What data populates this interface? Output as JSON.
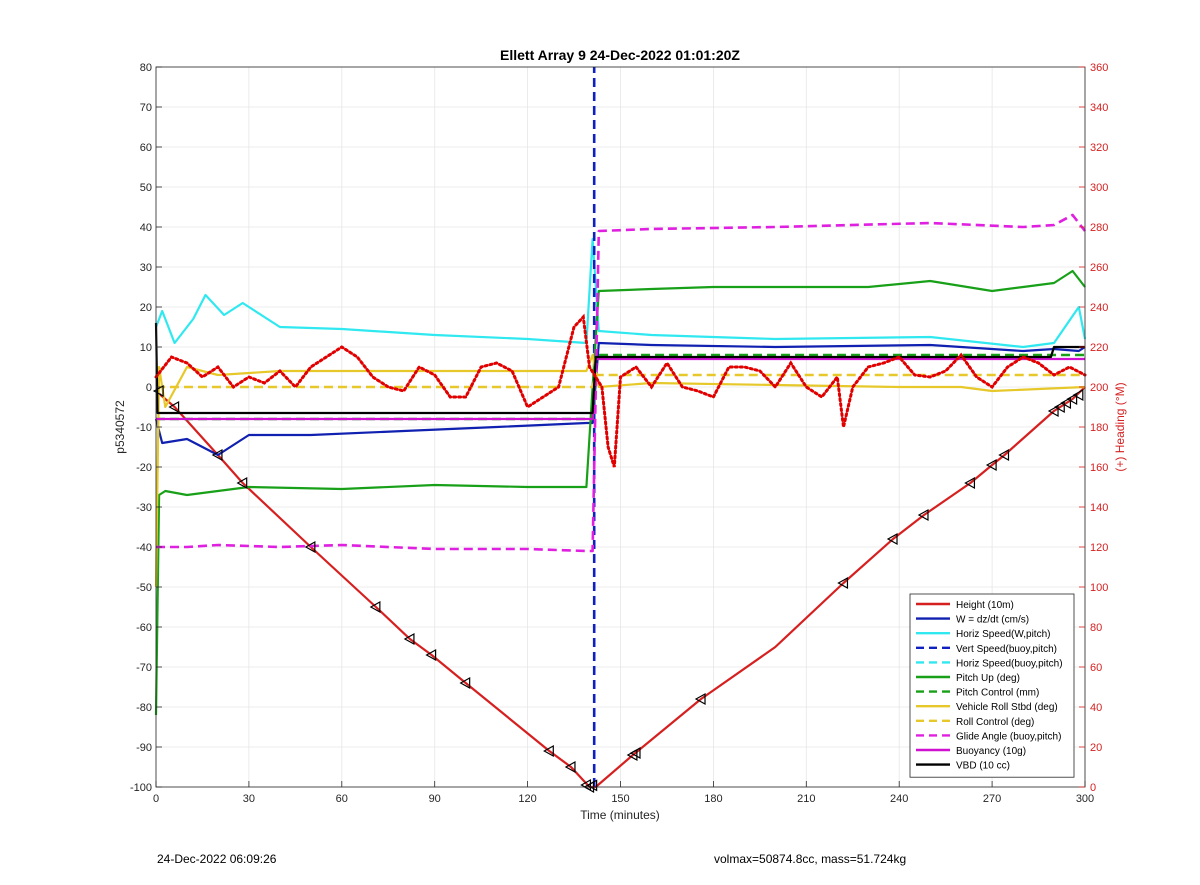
{
  "chart_data": {
    "type": "line",
    "title": "Ellett Array 9 24-Dec-2022 01:01:20Z",
    "xlabel": "Time (minutes)",
    "ylabel_left": "p5340572",
    "ylabel_right": "(+) Heading (°M)",
    "xlim": [
      0,
      300
    ],
    "ylim_left": [
      -100,
      80
    ],
    "ylim_right": [
      0,
      360
    ],
    "x_ticks": [
      0,
      30,
      60,
      90,
      120,
      150,
      180,
      210,
      240,
      270,
      300
    ],
    "y_left_ticks": [
      -100,
      -90,
      -80,
      -70,
      -60,
      -50,
      -40,
      -30,
      -20,
      -10,
      0,
      10,
      20,
      30,
      40,
      50,
      60,
      70,
      80
    ],
    "y_right_ticks": [
      0,
      20,
      40,
      60,
      80,
      100,
      120,
      140,
      160,
      180,
      200,
      220,
      240,
      260,
      280,
      300,
      320,
      340,
      360
    ],
    "grid": true,
    "legend_position": "bottom-right",
    "series": [
      {
        "name": "Height (10m)",
        "color": "#d62020",
        "style": "solid",
        "x": [
          0,
          6,
          20,
          28,
          50,
          71,
          82,
          89,
          100,
          127,
          134,
          140,
          142,
          154,
          176,
          200,
          222,
          238,
          248,
          263,
          270,
          274,
          290,
          296,
          300
        ],
        "y": [
          -1,
          -5,
          -17,
          -24,
          -40,
          -55,
          -63,
          -67,
          -74,
          -91,
          -95,
          -100,
          -100,
          -92,
          -78,
          -65,
          -49,
          -38,
          -32,
          -24,
          -19.5,
          -17,
          -6,
          -3,
          0
        ]
      },
      {
        "name": "W = dz/dt (cm/s)",
        "color": "#1020b0",
        "style": "solid",
        "x": [
          0,
          2,
          10,
          20,
          30,
          50,
          80,
          110,
          139,
          141,
          143,
          160,
          200,
          250,
          280,
          290,
          298,
          300
        ],
        "y": [
          -8,
          -14,
          -13,
          -17,
          -12,
          -12,
          -11,
          -10,
          -9,
          -9,
          11,
          10.5,
          10,
          10.5,
          9,
          9.5,
          9,
          10
        ]
      },
      {
        "name": "Horiz Speed(W,pitch)",
        "color": "#30e8f0",
        "style": "solid",
        "x": [
          0,
          2,
          6,
          12,
          16,
          22,
          28,
          40,
          60,
          90,
          120,
          139,
          141,
          143,
          160,
          200,
          250,
          280,
          290,
          298,
          300
        ],
        "y": [
          15,
          19,
          11,
          17,
          23,
          18,
          21,
          15,
          14.5,
          13,
          12,
          11,
          37,
          14,
          13,
          12,
          12.5,
          10,
          11,
          20,
          12
        ]
      },
      {
        "name": "Vert Speed(buoy,pitch)",
        "color": "#1020c0",
        "style": "dashed",
        "x": [
          141.5,
          141.5
        ],
        "y": [
          -100,
          80
        ]
      },
      {
        "name": "Horiz Speed(buoy,pitch)",
        "color": "#30e8f0",
        "style": "dashed",
        "x": [],
        "y": []
      },
      {
        "name": "Pitch Up (deg)",
        "color": "#18a018",
        "style": "solid",
        "x": [
          0,
          1,
          3,
          10,
          20,
          30,
          60,
          90,
          120,
          139,
          141,
          143,
          160,
          180,
          200,
          230,
          250,
          270,
          280,
          290,
          296,
          300
        ],
        "y": [
          -82,
          -27,
          -26,
          -27,
          -26,
          -25,
          -25.5,
          -24.5,
          -25,
          -25,
          0,
          24,
          24.5,
          25,
          25,
          25,
          26.5,
          24,
          25,
          26,
          29,
          25
        ]
      },
      {
        "name": "Pitch Control (mm)",
        "color": "#18a018",
        "style": "dashed",
        "x": [
          0,
          141,
          142,
          300
        ],
        "y": [
          -8,
          -8,
          8,
          8
        ]
      },
      {
        "name": "Vehicle Roll Stbd (deg)",
        "color": "#e6c82a",
        "style": "solid",
        "x": [
          0,
          1,
          3,
          10,
          20,
          40,
          60,
          80,
          100,
          120,
          139,
          141,
          143,
          160,
          200,
          240,
          260,
          270,
          300
        ],
        "y": [
          -50,
          5,
          -5,
          5,
          3,
          4,
          4,
          4,
          4,
          4,
          4,
          8,
          0,
          1,
          0.5,
          0,
          0,
          -1,
          0
        ]
      },
      {
        "name": "Roll Control (deg)",
        "color": "#e6c82a",
        "style": "dashed",
        "x": [
          0,
          141,
          142,
          300
        ],
        "y": [
          0,
          0,
          3,
          3
        ]
      },
      {
        "name": "Glide Angle (buoy,pitch)",
        "color": "#e020e0",
        "style": "dashed",
        "x": [
          0,
          2,
          10,
          20,
          40,
          60,
          90,
          120,
          139,
          141,
          143,
          160,
          200,
          250,
          280,
          290,
          296,
          300
        ],
        "y": [
          -40,
          -40,
          -40,
          -39.5,
          -40,
          -39.5,
          -40.5,
          -40.5,
          -41,
          -41,
          39,
          39.5,
          40,
          41,
          40,
          40.5,
          43,
          39
        ]
      },
      {
        "name": "Buoyancy (10g)",
        "color": "#d010d0",
        "style": "solid",
        "x": [
          0,
          141,
          142,
          300
        ],
        "y": [
          -8,
          -8,
          7,
          7
        ]
      },
      {
        "name": "VBD (10 cc)",
        "color": "#000000",
        "style": "solid",
        "x": [
          0,
          0.5,
          141,
          142,
          289,
          290,
          300
        ],
        "y": [
          16,
          -6.5,
          -6.5,
          7.5,
          7.5,
          10,
          10
        ]
      }
    ],
    "heading": {
      "color": "#e00000",
      "x": [
        0,
        5,
        10,
        15,
        20,
        25,
        30,
        35,
        40,
        45,
        50,
        55,
        60,
        65,
        70,
        75,
        80,
        85,
        90,
        95,
        100,
        105,
        110,
        115,
        120,
        125,
        130,
        135,
        138,
        140,
        144,
        146,
        148,
        150,
        155,
        160,
        165,
        170,
        175,
        180,
        185,
        190,
        195,
        200,
        205,
        210,
        215,
        220,
        222,
        225,
        230,
        235,
        240,
        245,
        250,
        255,
        260,
        265,
        270,
        275,
        280,
        285,
        290,
        295,
        300
      ],
      "y": [
        205,
        215,
        212,
        205,
        210,
        200,
        205,
        202,
        208,
        200,
        210,
        215,
        220,
        215,
        205,
        200,
        198,
        210,
        206,
        195,
        195,
        210,
        212,
        208,
        190,
        195,
        200,
        230,
        235,
        210,
        200,
        170,
        160,
        205,
        210,
        200,
        212,
        200,
        198,
        195,
        210,
        210,
        208,
        200,
        212,
        200,
        195,
        205,
        180,
        200,
        210,
        212,
        215,
        206,
        205,
        208,
        216,
        205,
        200,
        210,
        215,
        212,
        206,
        210,
        206
      ]
    },
    "markers": {
      "color": "#000000",
      "x": [
        1,
        6,
        20,
        28,
        50,
        71,
        82,
        89,
        100,
        127,
        134,
        139,
        140,
        141,
        154,
        155,
        176,
        222,
        238,
        248,
        263,
        270,
        274,
        290,
        292,
        294,
        296,
        298
      ],
      "y": [
        -1,
        -5,
        -17,
        -24,
        -40,
        -55,
        -63,
        -67,
        -74,
        -91,
        -95,
        -99.5,
        -100,
        -99.6,
        -92,
        -91.5,
        -78,
        -49,
        -38,
        -32,
        -24,
        -19.5,
        -17,
        -6,
        -5,
        -4,
        -3,
        -2
      ]
    },
    "footer_left": "24-Dec-2022 06:09:26",
    "footer_right": "volmax=50874.8cc, mass=51.724kg"
  }
}
